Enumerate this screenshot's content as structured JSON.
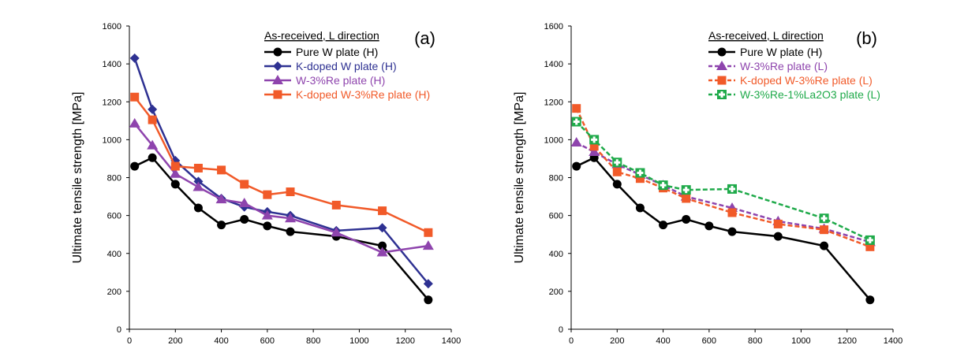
{
  "chart_data": [
    {
      "type": "line",
      "panel_label": "(a)",
      "legend_title": "As-received, L direction",
      "legend_position": "top-right",
      "xlabel": "",
      "ylabel": "Ultimate tensile strength [MPa]",
      "xlim": [
        0,
        1400
      ],
      "ylim": [
        0,
        1600
      ],
      "xticks": [
        0,
        200,
        400,
        600,
        800,
        1000,
        1200,
        1400
      ],
      "yticks": [
        0,
        200,
        400,
        600,
        800,
        1000,
        1200,
        1400,
        1600
      ],
      "grid": false,
      "series": [
        {
          "name": "Pure W plate (H)",
          "color": "#000000",
          "marker": "circle",
          "dash": "solid",
          "points": [
            [
              23,
              860
            ],
            [
              100,
              905
            ],
            [
              200,
              765
            ],
            [
              300,
              640
            ],
            [
              400,
              550
            ],
            [
              500,
              580
            ],
            [
              600,
              545
            ],
            [
              700,
              515
            ],
            [
              900,
              490
            ],
            [
              1100,
              440
            ],
            [
              1300,
              155
            ]
          ]
        },
        {
          "name": "K-doped W plate (H)",
          "color": "#2e3192",
          "marker": "diamond",
          "dash": "solid",
          "points": [
            [
              23,
              1430
            ],
            [
              100,
              1160
            ],
            [
              200,
              890
            ],
            [
              300,
              780
            ],
            [
              400,
              690
            ],
            [
              500,
              645
            ],
            [
              600,
              620
            ],
            [
              700,
              600
            ],
            [
              900,
              520
            ],
            [
              1100,
              535
            ],
            [
              1300,
              240
            ]
          ]
        },
        {
          "name": "W-3%Re plate (H)",
          "color": "#8e44ad",
          "marker": "triangle",
          "dash": "solid",
          "points": [
            [
              23,
              1085
            ],
            [
              100,
              970
            ],
            [
              200,
              820
            ],
            [
              300,
              750
            ],
            [
              400,
              685
            ],
            [
              500,
              665
            ],
            [
              600,
              600
            ],
            [
              700,
              585
            ],
            [
              900,
              510
            ],
            [
              1100,
              405
            ],
            [
              1300,
              440
            ]
          ]
        },
        {
          "name": "K-doped W-3%Re plate (H)",
          "color": "#f15a29",
          "marker": "square",
          "dash": "solid",
          "points": [
            [
              23,
              1225
            ],
            [
              100,
              1105
            ],
            [
              200,
              860
            ],
            [
              300,
              850
            ],
            [
              400,
              840
            ],
            [
              500,
              765
            ],
            [
              600,
              710
            ],
            [
              700,
              725
            ],
            [
              900,
              655
            ],
            [
              1100,
              625
            ],
            [
              1300,
              510
            ]
          ]
        }
      ]
    },
    {
      "type": "line",
      "panel_label": "(b)",
      "legend_title": "As-received, L direction",
      "legend_position": "top-right",
      "xlabel": "",
      "ylabel": "Ultimate tensile strength [MPa]",
      "xlim": [
        0,
        1400
      ],
      "ylim": [
        0,
        1600
      ],
      "xticks": [
        0,
        200,
        400,
        600,
        800,
        1000,
        1200,
        1400
      ],
      "yticks": [
        0,
        200,
        400,
        600,
        800,
        1000,
        1200,
        1400,
        1600
      ],
      "grid": false,
      "series": [
        {
          "name": "Pure W plate (H)",
          "color": "#000000",
          "marker": "circle",
          "dash": "solid",
          "points": [
            [
              23,
              860
            ],
            [
              100,
              905
            ],
            [
              200,
              765
            ],
            [
              300,
              640
            ],
            [
              400,
              550
            ],
            [
              500,
              580
            ],
            [
              600,
              545
            ],
            [
              700,
              515
            ],
            [
              900,
              490
            ],
            [
              1100,
              440
            ],
            [
              1300,
              155
            ]
          ]
        },
        {
          "name": "W-3%Re plate (L)",
          "color": "#8e44ad",
          "marker": "triangle",
          "dash": "dashed",
          "points": [
            [
              23,
              985
            ],
            [
              100,
              935
            ],
            [
              200,
              870
            ],
            [
              300,
              815
            ],
            [
              400,
              760
            ],
            [
              500,
              700
            ],
            [
              700,
              640
            ],
            [
              900,
              570
            ],
            [
              1100,
              530
            ],
            [
              1300,
              460
            ]
          ]
        },
        {
          "name": "K-doped W-3%Re plate (L)",
          "color": "#f15a29",
          "marker": "square",
          "dash": "dashed",
          "points": [
            [
              23,
              1165
            ],
            [
              100,
              965
            ],
            [
              200,
              830
            ],
            [
              300,
              795
            ],
            [
              400,
              745
            ],
            [
              500,
              690
            ],
            [
              700,
              615
            ],
            [
              900,
              555
            ],
            [
              1100,
              525
            ],
            [
              1300,
              435
            ]
          ]
        },
        {
          "name": "W-3%Re-1%La2O3 plate (L)",
          "color": "#1faa4a",
          "marker": "square-cross",
          "dash": "dashed",
          "points": [
            [
              23,
              1095
            ],
            [
              100,
              1000
            ],
            [
              200,
              880
            ],
            [
              300,
              825
            ],
            [
              400,
              760
            ],
            [
              500,
              735
            ],
            [
              700,
              740
            ],
            [
              1100,
              585
            ],
            [
              1300,
              470
            ]
          ]
        }
      ]
    }
  ]
}
